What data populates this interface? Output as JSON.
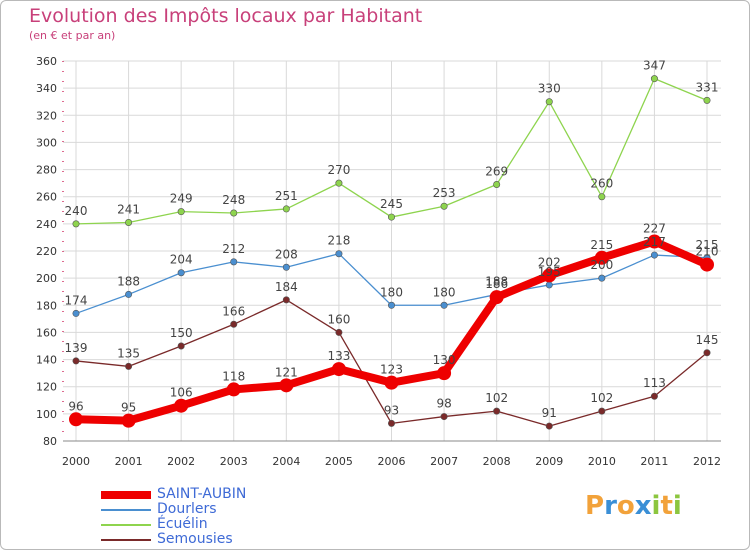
{
  "title": "Evolution des Impôts locaux par Habitant",
  "subtitle": "(en € et par an)",
  "colors": {
    "title": "#c8407a",
    "grid": "#d9d9d9",
    "axis": "#888888",
    "legend_text": "#3e6ad6"
  },
  "logo": {
    "text": "Proxiti",
    "letters": [
      "P",
      "r",
      "o",
      "x",
      "i",
      "t",
      "i"
    ],
    "colors": [
      "#f2a23a",
      "#3a8fd6",
      "#f2a23a",
      "#3a8fd6",
      "#8cc63f",
      "#f2a23a",
      "#8cc63f"
    ]
  },
  "chart_data": {
    "type": "line",
    "title": "Evolution des Impôts locaux par Habitant",
    "subtitle": "(en € et par an)",
    "xlabel": "",
    "ylabel": "",
    "categories": [
      "2000",
      "2001",
      "2002",
      "2003",
      "2004",
      "2005",
      "2006",
      "2007",
      "2008",
      "2009",
      "2010",
      "2011",
      "2012"
    ],
    "ylim": [
      80,
      360
    ],
    "yticks": [
      80,
      100,
      120,
      140,
      160,
      180,
      200,
      220,
      240,
      260,
      280,
      300,
      320,
      340,
      360
    ],
    "grid": true,
    "legend_position": "bottom-left",
    "series": [
      {
        "name": "SAINT-AUBIN",
        "color": "#ee0000",
        "width": 8,
        "marker": 7,
        "values": [
          96,
          95,
          106,
          118,
          121,
          133,
          123,
          130,
          186,
          202,
          215,
          227,
          210
        ],
        "labels": [
          "96",
          "95",
          "106",
          "118",
          "121",
          "133",
          "123",
          "130",
          "186",
          "202",
          "215",
          "227",
          "210"
        ]
      },
      {
        "name": "Dourlers",
        "color": "#4a8fd0",
        "width": 1.3,
        "marker": 3.2,
        "values": [
          174,
          188,
          204,
          212,
          208,
          218,
          180,
          180,
          188,
          195,
          200,
          217,
          215
        ],
        "labels": [
          "174",
          "188",
          "204",
          "212",
          "208",
          "218",
          "180",
          "180",
          "188",
          "195",
          "200",
          "217",
          "215"
        ]
      },
      {
        "name": "Écuélin",
        "color": "#8ed44e",
        "width": 1.3,
        "marker": 3.2,
        "values": [
          240,
          241,
          249,
          248,
          251,
          270,
          245,
          253,
          269,
          330,
          260,
          347,
          331
        ],
        "labels": [
          "240",
          "241",
          "249",
          "248",
          "251",
          "270",
          "245",
          "253",
          "269",
          "330",
          "260",
          "347",
          "331"
        ]
      },
      {
        "name": "Semousies",
        "color": "#7a2a2a",
        "width": 1.3,
        "marker": 3.2,
        "values": [
          139,
          135,
          150,
          166,
          184,
          160,
          93,
          98,
          102,
          91,
          102,
          113,
          145
        ],
        "labels": [
          "139",
          "135",
          "150",
          "166",
          "184",
          "160",
          "93",
          "98",
          "102",
          "91",
          "102",
          "113",
          "145"
        ]
      }
    ]
  }
}
